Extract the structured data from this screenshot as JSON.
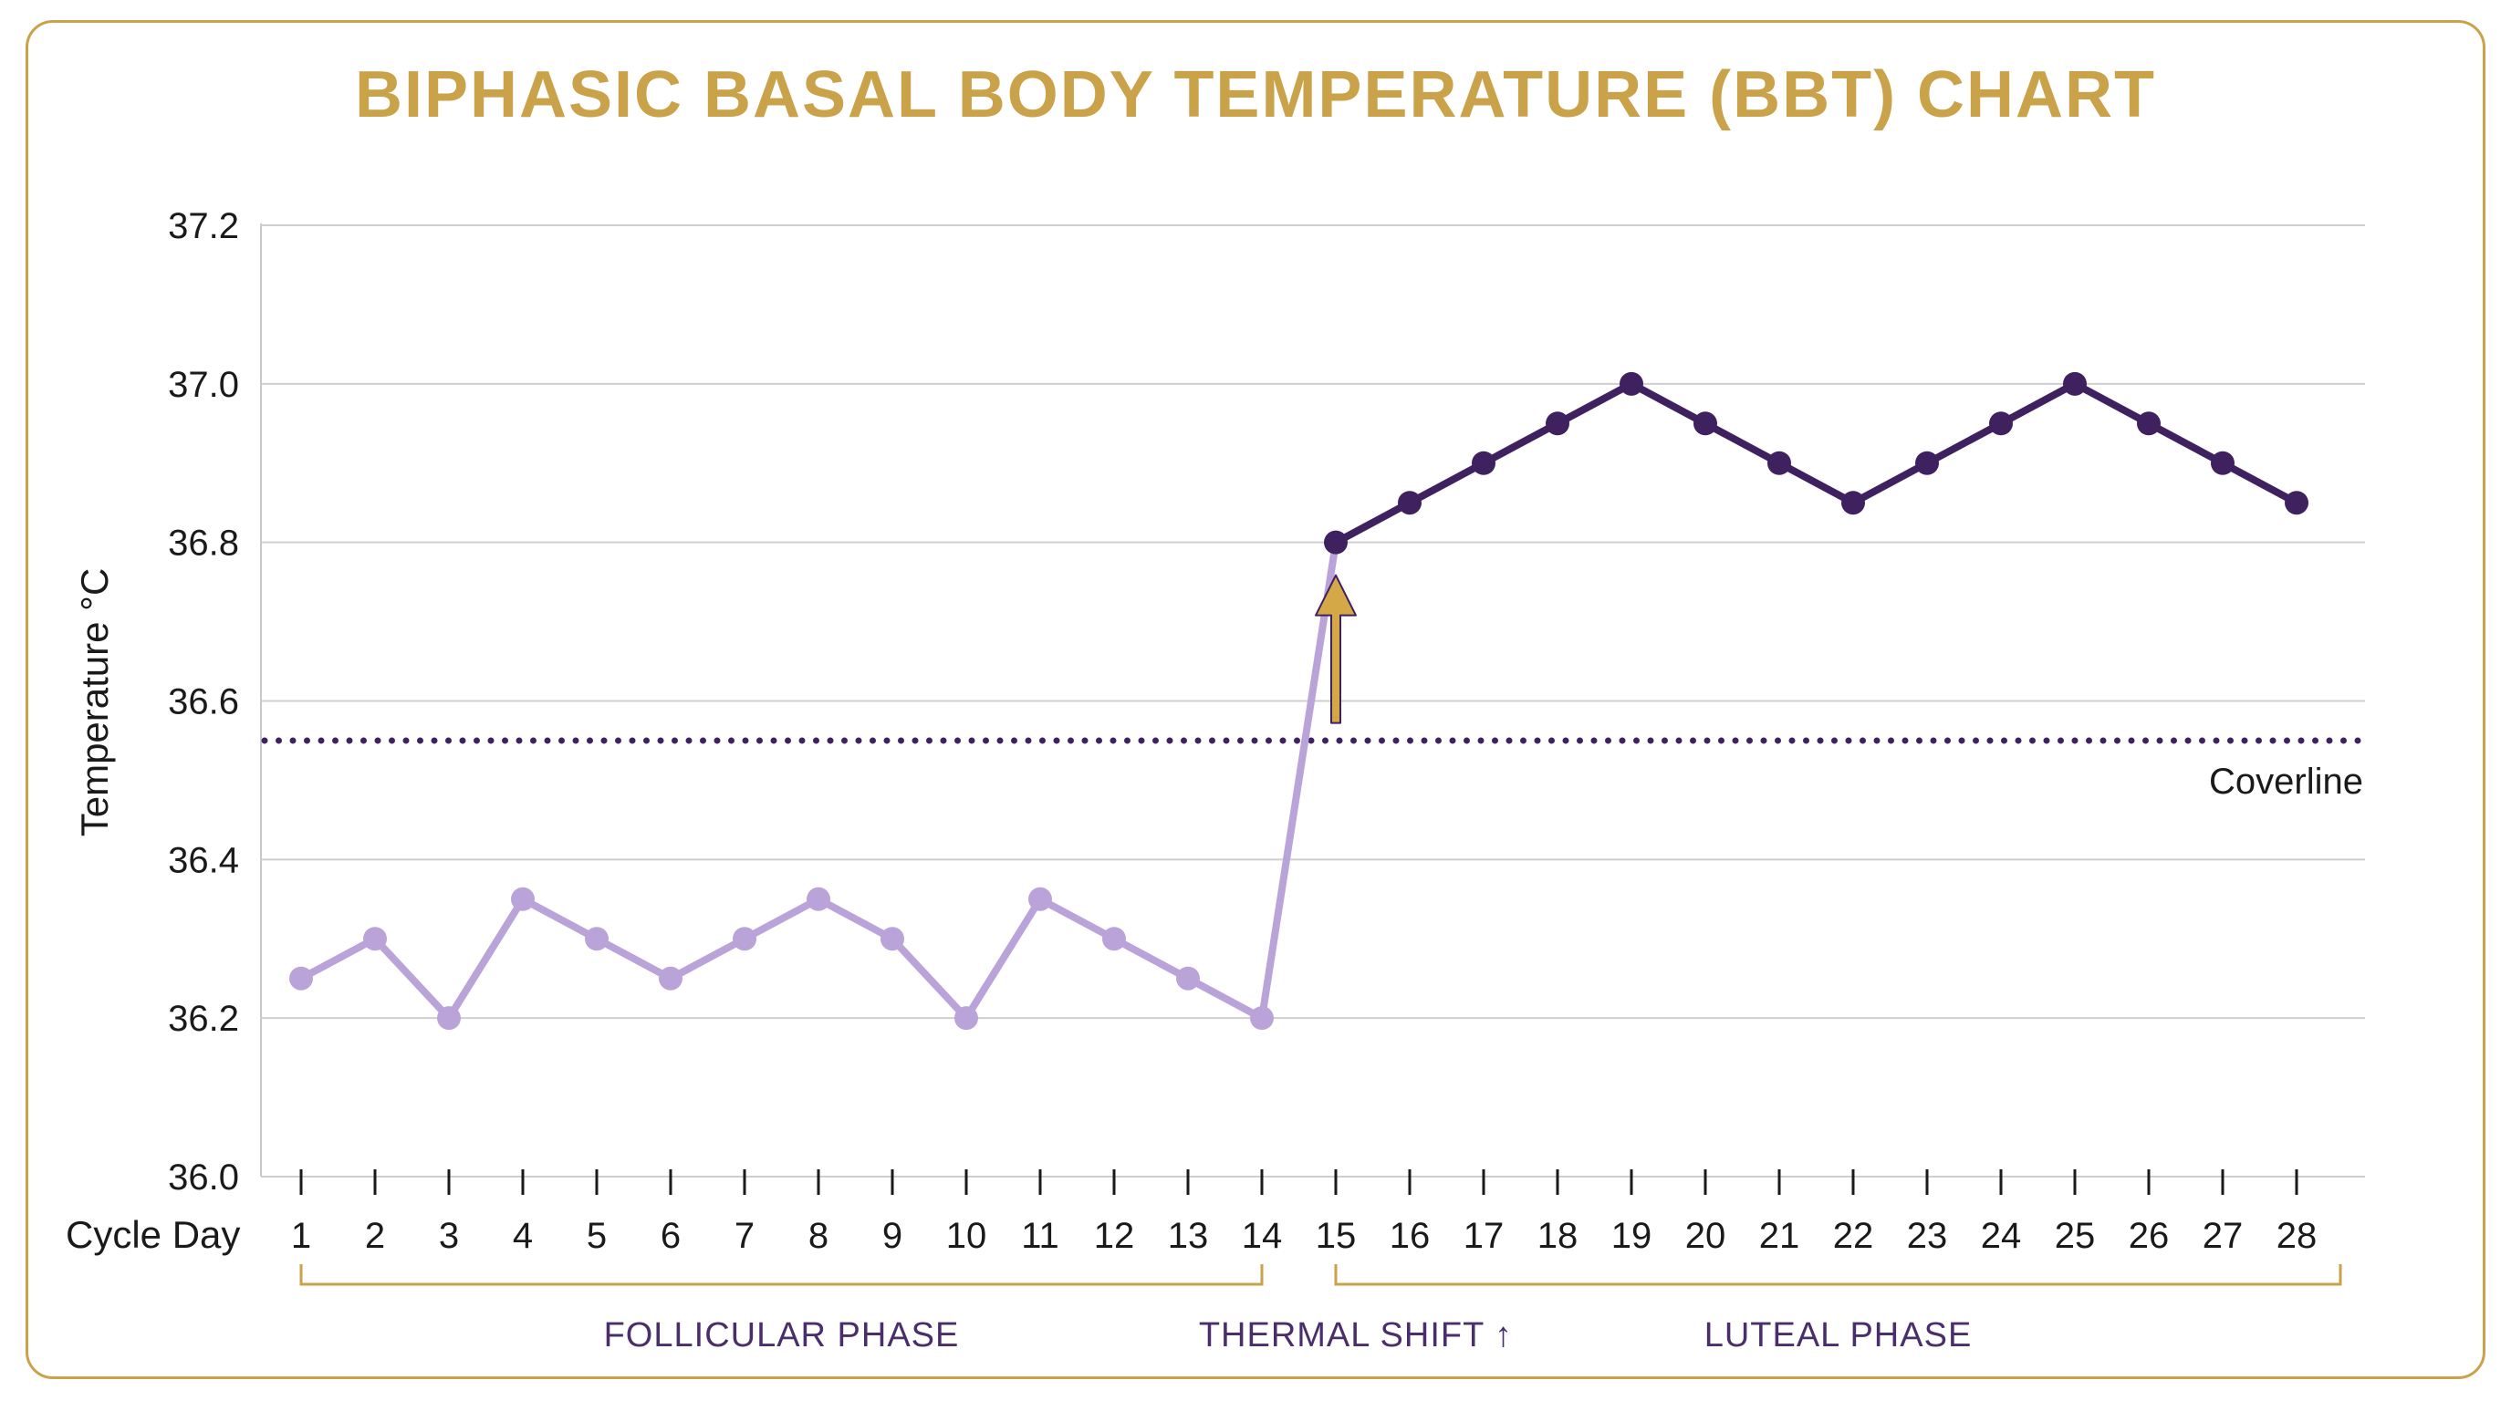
{
  "chart_data": {
    "type": "line",
    "title": "BIPHASIC BASAL BODY TEMPERATURE (BBT) CHART",
    "xlabel": "Cycle Day",
    "ylabel": "Temperature °C",
    "ylim": [
      36.0,
      37.2
    ],
    "yticks": [
      "36.0",
      "36.2",
      "36.4",
      "36.6",
      "36.8",
      "37.0",
      "37.2"
    ],
    "grid": true,
    "x": [
      1,
      2,
      3,
      4,
      5,
      6,
      7,
      8,
      9,
      10,
      11,
      12,
      13,
      14,
      15,
      16,
      17,
      18,
      19,
      20,
      21,
      22,
      23,
      24,
      25,
      26,
      27,
      28
    ],
    "series": [
      {
        "phase": "follicular",
        "color": "#b9a3d9",
        "x": [
          1,
          2,
          3,
          4,
          5,
          6,
          7,
          8,
          9,
          10,
          11,
          12,
          13,
          14
        ],
        "values": [
          36.25,
          36.3,
          36.2,
          36.35,
          36.3,
          36.25,
          36.3,
          36.35,
          36.3,
          36.2,
          36.35,
          36.3,
          36.25,
          36.2
        ]
      },
      {
        "phase": "luteal",
        "color": "#3f2160",
        "x": [
          15,
          16,
          17,
          18,
          19,
          20,
          21,
          22,
          23,
          24,
          25,
          26,
          27,
          28
        ],
        "values": [
          36.8,
          36.85,
          36.9,
          36.95,
          37.0,
          36.95,
          36.9,
          36.85,
          36.9,
          36.95,
          37.0,
          36.95,
          36.9,
          36.85
        ]
      }
    ],
    "coverline": {
      "value": 36.55,
      "label": "Coverline",
      "color": "#3f2160"
    },
    "annotations": {
      "thermal_shift_arrow_day": 15,
      "arrow_color": "#d4a847"
    },
    "phases": [
      {
        "label": "FOLLICULAR PHASE",
        "start_day": 1,
        "end_day": 14
      },
      {
        "label": "THERMAL SHIFT ↑",
        "day": 15
      },
      {
        "label": "LUTEAL PHASE",
        "start_day": 15,
        "end_day": 28
      }
    ],
    "bracket_color": "#c9a24a",
    "accent_color": "#c9a24a"
  }
}
